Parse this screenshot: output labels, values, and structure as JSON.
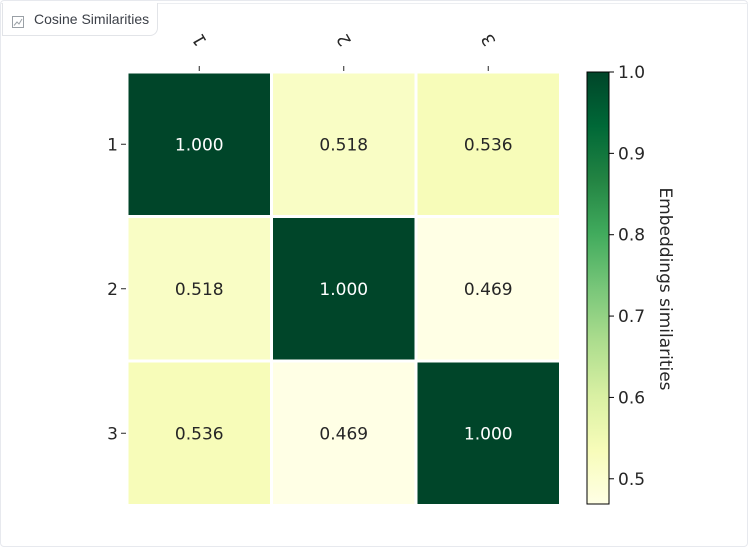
{
  "header": {
    "title": "Cosine Similarities",
    "icon": "chart-icon"
  },
  "chart_data": {
    "type": "heatmap",
    "x_labels": [
      "1",
      "2",
      "3"
    ],
    "y_labels": [
      "1",
      "2",
      "3"
    ],
    "values": [
      [
        1.0,
        0.518,
        0.536
      ],
      [
        0.518,
        1.0,
        0.469
      ],
      [
        0.536,
        0.469,
        1.0
      ]
    ],
    "value_labels": [
      [
        "1.000",
        "0.518",
        "0.536"
      ],
      [
        "0.518",
        "1.000",
        "0.469"
      ],
      [
        "0.536",
        "0.469",
        "1.000"
      ]
    ],
    "colorbar": {
      "label": "Embeddings similarities",
      "range": [
        0.469,
        1.0
      ],
      "ticks": [
        0.5,
        0.6,
        0.7,
        0.8,
        0.9,
        1.0
      ],
      "tick_labels": [
        "0.5",
        "0.6",
        "0.7",
        "0.8",
        "0.9",
        "1.0"
      ],
      "colormap": "YlGn"
    },
    "x_tick_rotation": "rotated",
    "grid": false,
    "colors": {
      "cell_gap": "#ffffff",
      "text_dark": "#262626",
      "text_light": "#ffffff"
    }
  }
}
